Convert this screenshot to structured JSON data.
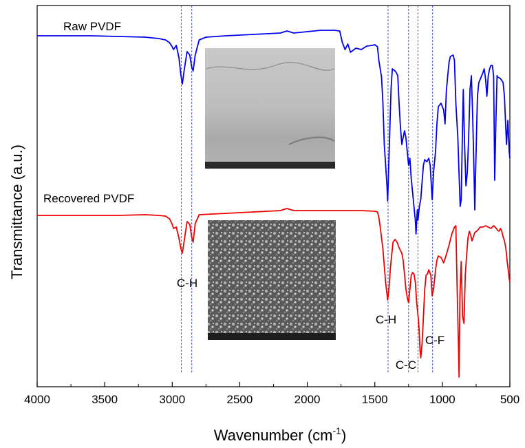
{
  "chart_data": {
    "type": "line",
    "xlabel_main": "Wavenumber (cm",
    "xlabel_sup": "-1",
    "xlabel_tail": ")",
    "ylabel": "Transmittance (a.u.)",
    "xlim": [
      4000,
      500
    ],
    "x_ticks": [
      4000,
      3500,
      3000,
      2500,
      2000,
      1500,
      1000,
      500
    ],
    "x_tick_labels": [
      "4000",
      "3500",
      "3000",
      "2500",
      "2000",
      "1500",
      "1000",
      "500"
    ],
    "series": [
      {
        "name": "Raw PVDF",
        "color": "#0000ee",
        "points": [
          [
            4000,
            52
          ],
          [
            3600,
            52
          ],
          [
            3400,
            53
          ],
          [
            3200,
            54
          ],
          [
            3100,
            56
          ],
          [
            3050,
            58
          ],
          [
            3020,
            62
          ],
          [
            3000,
            68
          ],
          [
            2990,
            72
          ],
          [
            2970,
            66
          ],
          [
            2950,
            84
          ],
          [
            2935,
            110
          ],
          [
            2925,
            122
          ],
          [
            2910,
            100
          ],
          [
            2890,
            75
          ],
          [
            2870,
            80
          ],
          [
            2855,
            98
          ],
          [
            2845,
            103
          ],
          [
            2830,
            80
          ],
          [
            2800,
            58
          ],
          [
            2750,
            54
          ],
          [
            2600,
            52
          ],
          [
            2400,
            50
          ],
          [
            2200,
            48
          ],
          [
            2150,
            45
          ],
          [
            2100,
            48
          ],
          [
            2000,
            46
          ],
          [
            1900,
            44
          ],
          [
            1800,
            44
          ],
          [
            1760,
            45
          ],
          [
            1740,
            62
          ],
          [
            1720,
            72
          ],
          [
            1700,
            64
          ],
          [
            1680,
            76
          ],
          [
            1640,
            70
          ],
          [
            1600,
            72
          ],
          [
            1560,
            67
          ],
          [
            1520,
            66
          ],
          [
            1500,
            65
          ],
          [
            1480,
            68
          ],
          [
            1470,
            88
          ],
          [
            1450,
            112
          ],
          [
            1440,
            150
          ],
          [
            1430,
            210
          ],
          [
            1410,
            270
          ],
          [
            1405,
            292
          ],
          [
            1395,
            230
          ],
          [
            1380,
            130
          ],
          [
            1370,
            100
          ],
          [
            1345,
            104
          ],
          [
            1330,
            110
          ],
          [
            1320,
            150
          ],
          [
            1310,
            185
          ],
          [
            1300,
            210
          ],
          [
            1290,
            200
          ],
          [
            1280,
            190
          ],
          [
            1270,
            200
          ],
          [
            1250,
            240
          ],
          [
            1240,
            230
          ],
          [
            1230,
            260
          ],
          [
            1220,
            280
          ],
          [
            1210,
            300
          ],
          [
            1200,
            320
          ],
          [
            1195,
            340
          ],
          [
            1185,
            305
          ],
          [
            1180,
            320
          ],
          [
            1170,
            300
          ],
          [
            1160,
            290
          ],
          [
            1150,
            265
          ],
          [
            1140,
            240
          ],
          [
            1130,
            232
          ],
          [
            1115,
            235
          ],
          [
            1100,
            230
          ],
          [
            1090,
            240
          ],
          [
            1075,
            290
          ],
          [
            1065,
            250
          ],
          [
            1050,
            220
          ],
          [
            1040,
            180
          ],
          [
            1030,
            155
          ],
          [
            1010,
            150
          ],
          [
            990,
            160
          ],
          [
            980,
            180
          ],
          [
            970,
            132
          ],
          [
            960,
            110
          ],
          [
            950,
            90
          ],
          [
            940,
            82
          ],
          [
            920,
            80
          ],
          [
            910,
            88
          ],
          [
            900,
            150
          ],
          [
            885,
            200
          ],
          [
            875,
            260
          ],
          [
            868,
            300
          ],
          [
            860,
            290
          ],
          [
            850,
            180
          ],
          [
            845,
            130
          ],
          [
            835,
            210
          ],
          [
            825,
            270
          ],
          [
            815,
            250
          ],
          [
            805,
            200
          ],
          [
            795,
            130
          ],
          [
            785,
            110
          ],
          [
            775,
            170
          ],
          [
            765,
            255
          ],
          [
            760,
            305
          ],
          [
            752,
            240
          ],
          [
            745,
            180
          ],
          [
            740,
            140
          ],
          [
            730,
            120
          ],
          [
            700,
            106
          ],
          [
            690,
            100
          ],
          [
            680,
            115
          ],
          [
            670,
            140
          ],
          [
            660,
            110
          ],
          [
            650,
            100
          ],
          [
            640,
            95
          ],
          [
            630,
            95
          ],
          [
            620,
            110
          ],
          [
            612,
            262
          ],
          [
            605,
            190
          ],
          [
            595,
            110
          ],
          [
            590,
            112
          ],
          [
            570,
            114
          ],
          [
            550,
            120
          ],
          [
            540,
            140
          ],
          [
            525,
            210
          ],
          [
            515,
            175
          ],
          [
            505,
            220
          ],
          [
            500,
            230
          ]
        ]
      },
      {
        "name": "Recovered PVDF",
        "color": "#ee0000",
        "points": [
          [
            4000,
            313
          ],
          [
            3600,
            313
          ],
          [
            3400,
            313
          ],
          [
            3200,
            312
          ],
          [
            3100,
            313
          ],
          [
            3050,
            314
          ],
          [
            3020,
            318
          ],
          [
            3000,
            326
          ],
          [
            2990,
            332
          ],
          [
            2970,
            330
          ],
          [
            2950,
            346
          ],
          [
            2935,
            362
          ],
          [
            2925,
            368
          ],
          [
            2910,
            348
          ],
          [
            2890,
            322
          ],
          [
            2870,
            326
          ],
          [
            2855,
            345
          ],
          [
            2845,
            352
          ],
          [
            2830,
            325
          ],
          [
            2800,
            312
          ],
          [
            2600,
            310
          ],
          [
            2400,
            308
          ],
          [
            2200,
            306
          ],
          [
            2150,
            303
          ],
          [
            2100,
            306
          ],
          [
            2000,
            306
          ],
          [
            1900,
            306
          ],
          [
            1800,
            306
          ],
          [
            1700,
            306
          ],
          [
            1600,
            306
          ],
          [
            1500,
            307
          ],
          [
            1480,
            308
          ],
          [
            1470,
            316
          ],
          [
            1460,
            330
          ],
          [
            1440,
            362
          ],
          [
            1420,
            410
          ],
          [
            1405,
            436
          ],
          [
            1395,
            420
          ],
          [
            1385,
            390
          ],
          [
            1375,
            370
          ],
          [
            1365,
            352
          ],
          [
            1350,
            348
          ],
          [
            1335,
            352
          ],
          [
            1320,
            360
          ],
          [
            1300,
            368
          ],
          [
            1290,
            378
          ],
          [
            1280,
            398
          ],
          [
            1270,
            420
          ],
          [
            1260,
            432
          ],
          [
            1250,
            440
          ],
          [
            1240,
            420
          ],
          [
            1230,
            400
          ],
          [
            1220,
            396
          ],
          [
            1210,
            398
          ],
          [
            1200,
            410
          ],
          [
            1190,
            440
          ],
          [
            1180,
            458
          ],
          [
            1172,
            478
          ],
          [
            1165,
            510
          ],
          [
            1160,
            520
          ],
          [
            1150,
            500
          ],
          [
            1140,
            460
          ],
          [
            1130,
            420
          ],
          [
            1120,
            400
          ],
          [
            1110,
            398
          ],
          [
            1100,
            392
          ],
          [
            1085,
            400
          ],
          [
            1075,
            430
          ],
          [
            1065,
            420
          ],
          [
            1050,
            392
          ],
          [
            1040,
            378
          ],
          [
            1030,
            372
          ],
          [
            1010,
            374
          ],
          [
            990,
            382
          ],
          [
            970,
            370
          ],
          [
            950,
            356
          ],
          [
            930,
            340
          ],
          [
            910,
            330
          ],
          [
            900,
            328
          ],
          [
            890,
            420
          ],
          [
            882,
            490
          ],
          [
            876,
            548
          ],
          [
            870,
            430
          ],
          [
            860,
            380
          ],
          [
            850,
            460
          ],
          [
            840,
            470
          ],
          [
            830,
            400
          ],
          [
            820,
            370
          ],
          [
            810,
            345
          ],
          [
            800,
            336
          ],
          [
            790,
            342
          ],
          [
            780,
            350
          ],
          [
            770,
            344
          ],
          [
            760,
            338
          ],
          [
            740,
            335
          ],
          [
            720,
            330
          ],
          [
            700,
            330
          ],
          [
            680,
            328
          ],
          [
            660,
            330
          ],
          [
            640,
            332
          ],
          [
            620,
            328
          ],
          [
            610,
            330
          ],
          [
            600,
            332
          ],
          [
            590,
            335
          ],
          [
            580,
            336
          ],
          [
            570,
            332
          ],
          [
            560,
            336
          ],
          [
            550,
            344
          ],
          [
            540,
            350
          ],
          [
            530,
            360
          ],
          [
            520,
            380
          ],
          [
            510,
            395
          ],
          [
            505,
            405
          ],
          [
            500,
            410
          ]
        ]
      }
    ],
    "annotations": [
      {
        "text": "C-H",
        "x": 2870
      },
      {
        "text": "C-H",
        "x": 1410
      },
      {
        "text": "C-C",
        "x": 1262
      },
      {
        "text": "C-F",
        "x": 1080
      }
    ],
    "markers": [
      2932,
      2855,
      1402,
      1250,
      1180,
      1072
    ]
  },
  "inset_images": [
    {
      "name": "raw-pvdf-sem-image",
      "color": "#b8b8b8"
    },
    {
      "name": "recovered-pvdf-sem-image",
      "color": "#6a6a6a"
    }
  ]
}
